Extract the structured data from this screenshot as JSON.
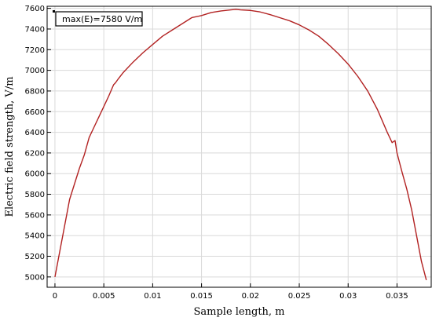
{
  "chart_data": {
    "type": "line",
    "title": "",
    "xlabel": "Sample length, m",
    "ylabel": "Electric field strength, V/m",
    "xlim": [
      -0.0008,
      0.0385
    ],
    "ylim": [
      4900,
      7620
    ],
    "grid": true,
    "x_ticks": [
      {
        "value": 0,
        "label": "0"
      },
      {
        "value": 0.005,
        "label": "0.005"
      },
      {
        "value": 0.01,
        "label": "0.01"
      },
      {
        "value": 0.015,
        "label": "0.015"
      },
      {
        "value": 0.02,
        "label": "0.02"
      },
      {
        "value": 0.025,
        "label": "0.025"
      },
      {
        "value": 0.03,
        "label": "0.03"
      },
      {
        "value": 0.035,
        "label": "0.035"
      }
    ],
    "y_ticks": [
      {
        "value": 5000,
        "label": "5000"
      },
      {
        "value": 5200,
        "label": "5200"
      },
      {
        "value": 5400,
        "label": "5400"
      },
      {
        "value": 5600,
        "label": "5600"
      },
      {
        "value": 5800,
        "label": "5800"
      },
      {
        "value": 6000,
        "label": "6000"
      },
      {
        "value": 6200,
        "label": "6200"
      },
      {
        "value": 6400,
        "label": "6400"
      },
      {
        "value": 6600,
        "label": "6600"
      },
      {
        "value": 6800,
        "label": "6800"
      },
      {
        "value": 7000,
        "label": "7000"
      },
      {
        "value": 7200,
        "label": "7200"
      },
      {
        "value": 7400,
        "label": "7400"
      },
      {
        "value": 7600,
        "label": "7600"
      }
    ],
    "annotation": "max(E)=7580 V/m",
    "series": [
      {
        "color": "#b22222",
        "x": [
          0,
          0.0005,
          0.001,
          0.0015,
          0.002,
          0.0025,
          0.003,
          0.0035,
          0.004,
          0.0045,
          0.005,
          0.0055,
          0.006,
          0.0062,
          0.0065,
          0.007,
          0.008,
          0.009,
          0.01,
          0.011,
          0.012,
          0.013,
          0.014,
          0.015,
          0.016,
          0.017,
          0.018,
          0.0185,
          0.019,
          0.02,
          0.021,
          0.022,
          0.023,
          0.024,
          0.025,
          0.026,
          0.027,
          0.028,
          0.029,
          0.03,
          0.031,
          0.032,
          0.033,
          0.034,
          0.0345,
          0.0348,
          0.035,
          0.0355,
          0.036,
          0.0365,
          0.037,
          0.0375,
          0.038
        ],
        "y": [
          5000,
          5250,
          5500,
          5750,
          5900,
          6050,
          6180,
          6350,
          6450,
          6550,
          6650,
          6750,
          6860,
          6880,
          6920,
          6980,
          7080,
          7170,
          7250,
          7330,
          7390,
          7450,
          7510,
          7530,
          7560,
          7575,
          7585,
          7590,
          7585,
          7580,
          7565,
          7540,
          7510,
          7480,
          7440,
          7390,
          7330,
          7250,
          7160,
          7060,
          6940,
          6800,
          6620,
          6400,
          6300,
          6320,
          6200,
          6020,
          5850,
          5650,
          5400,
          5150,
          4970
        ]
      }
    ]
  }
}
